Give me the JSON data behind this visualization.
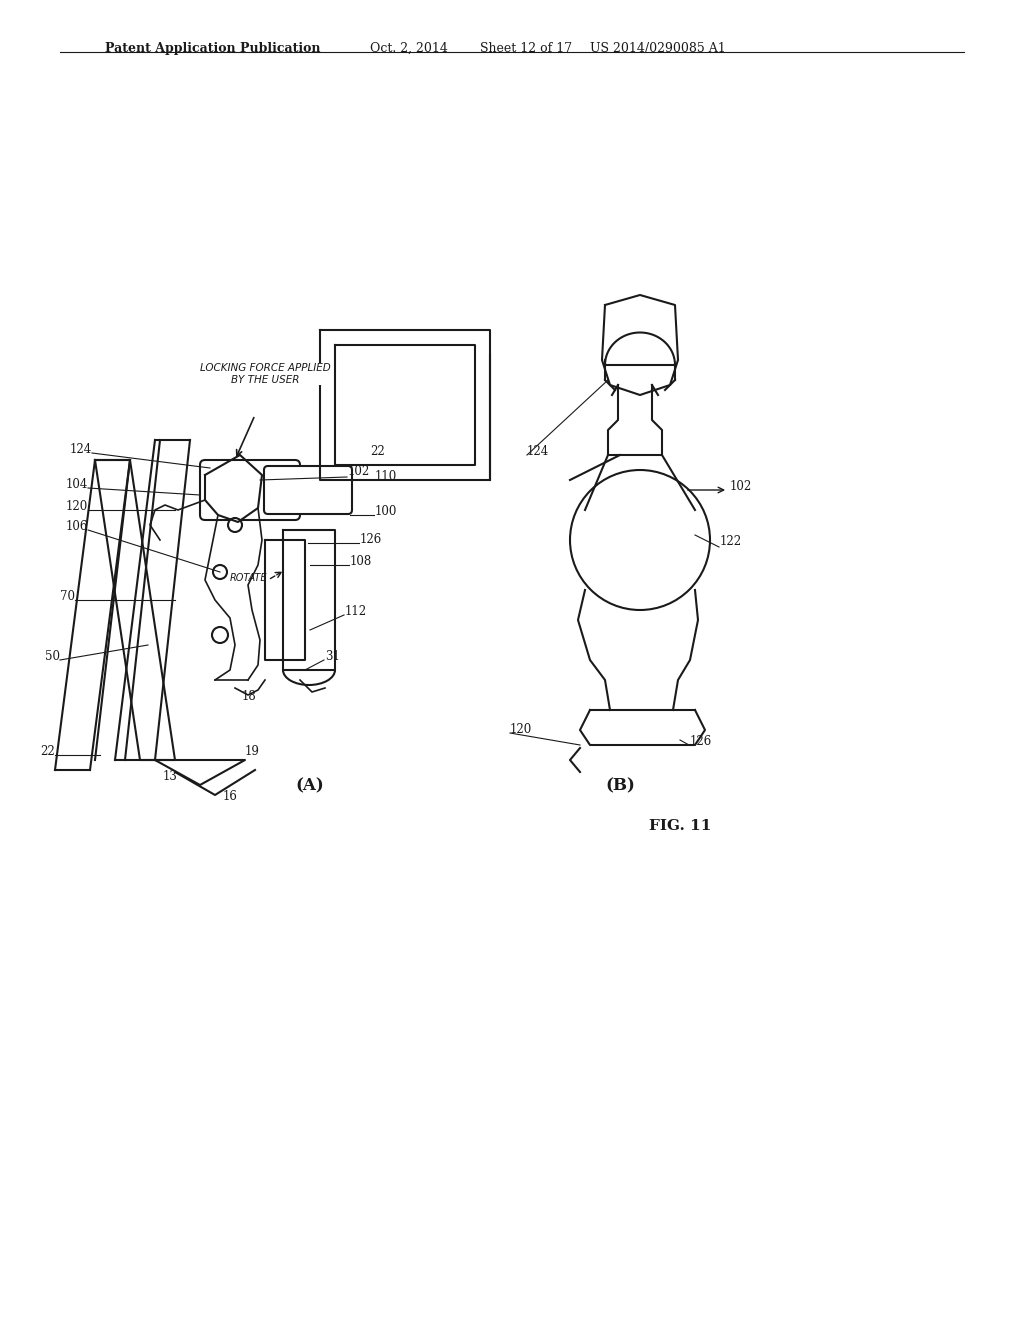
{
  "background_color": "#ffffff",
  "header_text": "Patent Application Publication",
  "header_date": "Oct. 2, 2014",
  "header_sheet": "Sheet 12 of 17",
  "header_patent": "US 2014/0290085 A1",
  "fig_label": "FIG. 11",
  "diagram_A_label": "(A)",
  "diagram_B_label": "(B)"
}
